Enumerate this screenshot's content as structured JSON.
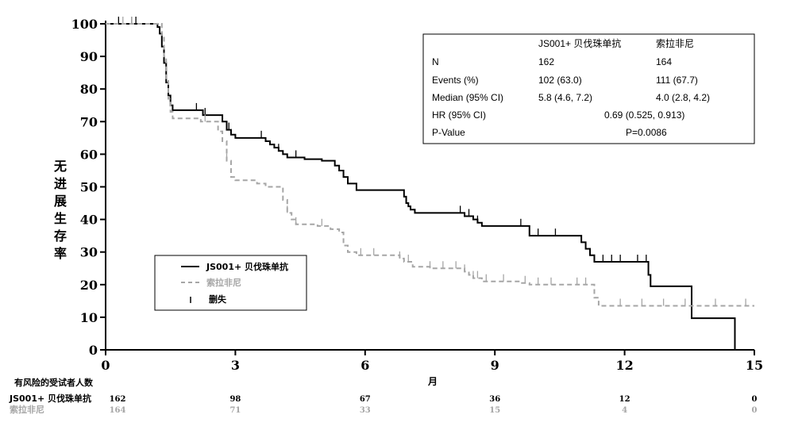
{
  "chart_data": {
    "type": "line",
    "subtype": "kaplan-meier",
    "ylabel": "无进展生存率",
    "xlabel": "月",
    "xlim": [
      0,
      15
    ],
    "ylim": [
      0,
      100
    ],
    "xticks": [
      "0",
      "3",
      "6",
      "9",
      "12",
      "15"
    ],
    "yticks": [
      "0",
      "10",
      "20",
      "30",
      "40",
      "50",
      "60",
      "70",
      "80",
      "90",
      "100"
    ],
    "series": [
      {
        "name": "JS001+ 贝伐珠单抗",
        "color": "#000000",
        "dash": false,
        "steps": [
          [
            0,
            100
          ],
          [
            1.1,
            100
          ],
          [
            1.2,
            99
          ],
          [
            1.25,
            97
          ],
          [
            1.3,
            93
          ],
          [
            1.35,
            88
          ],
          [
            1.4,
            82
          ],
          [
            1.45,
            78
          ],
          [
            1.5,
            75
          ],
          [
            1.55,
            73.5
          ],
          [
            2.2,
            73.5
          ],
          [
            2.25,
            72
          ],
          [
            2.6,
            72
          ],
          [
            2.7,
            70
          ],
          [
            2.8,
            67.5
          ],
          [
            2.9,
            66
          ],
          [
            3.0,
            65
          ],
          [
            3.6,
            65
          ],
          [
            3.7,
            64
          ],
          [
            3.8,
            63
          ],
          [
            3.9,
            62
          ],
          [
            4.0,
            61
          ],
          [
            4.1,
            60
          ],
          [
            4.2,
            59
          ],
          [
            4.6,
            58.5
          ],
          [
            5.0,
            58
          ],
          [
            5.3,
            56.5
          ],
          [
            5.4,
            55
          ],
          [
            5.5,
            53
          ],
          [
            5.6,
            51
          ],
          [
            5.8,
            49
          ],
          [
            6.8,
            49
          ],
          [
            6.9,
            47
          ],
          [
            6.95,
            45
          ],
          [
            7.0,
            44
          ],
          [
            7.05,
            43
          ],
          [
            7.15,
            42
          ],
          [
            8.0,
            42
          ],
          [
            8.3,
            41
          ],
          [
            8.5,
            40
          ],
          [
            8.6,
            39
          ],
          [
            8.7,
            38
          ],
          [
            9.7,
            38
          ],
          [
            9.8,
            35
          ],
          [
            10.9,
            35
          ],
          [
            11.0,
            33
          ],
          [
            11.1,
            31
          ],
          [
            11.2,
            29
          ],
          [
            11.3,
            27
          ],
          [
            12.5,
            27
          ],
          [
            12.55,
            23
          ],
          [
            12.6,
            19.5
          ],
          [
            13.5,
            19.5
          ],
          [
            13.55,
            9.7
          ],
          [
            14.5,
            9.7
          ],
          [
            14.55,
            0
          ]
        ],
        "censor": [
          0.3,
          0.6,
          0.7,
          2.1,
          2.3,
          2.85,
          3.6,
          4.0,
          4.4,
          5.5,
          6.9,
          8.2,
          8.4,
          8.6,
          9.6,
          10.0,
          10.4,
          11.2,
          11.5,
          11.7,
          11.9,
          12.3,
          12.5
        ]
      },
      {
        "name": "索拉非尼",
        "color": "#a6a6a6",
        "dash": true,
        "steps": [
          [
            0,
            100
          ],
          [
            1.2,
            100
          ],
          [
            1.3,
            96
          ],
          [
            1.35,
            90
          ],
          [
            1.4,
            83
          ],
          [
            1.45,
            77
          ],
          [
            1.5,
            73
          ],
          [
            1.55,
            71
          ],
          [
            2.1,
            71
          ],
          [
            2.2,
            70
          ],
          [
            2.6,
            67
          ],
          [
            2.7,
            64
          ],
          [
            2.8,
            58
          ],
          [
            2.9,
            53
          ],
          [
            3.0,
            52
          ],
          [
            3.5,
            51
          ],
          [
            3.7,
            50
          ],
          [
            4.0,
            50
          ],
          [
            4.1,
            46
          ],
          [
            4.2,
            42
          ],
          [
            4.3,
            40
          ],
          [
            4.4,
            38.5
          ],
          [
            4.9,
            38
          ],
          [
            5.2,
            37
          ],
          [
            5.4,
            36
          ],
          [
            5.5,
            32
          ],
          [
            5.6,
            30
          ],
          [
            5.8,
            29
          ],
          [
            6.8,
            28
          ],
          [
            6.9,
            27
          ],
          [
            7.1,
            25.5
          ],
          [
            7.5,
            25
          ],
          [
            8.3,
            24
          ],
          [
            8.4,
            23
          ],
          [
            8.5,
            22
          ],
          [
            8.7,
            21
          ],
          [
            9.4,
            21
          ],
          [
            9.6,
            20.5
          ],
          [
            9.8,
            20
          ],
          [
            11.2,
            20
          ],
          [
            11.3,
            16
          ],
          [
            11.4,
            13.5
          ],
          [
            15,
            13.5
          ]
        ],
        "censor": [
          0.4,
          0.6,
          2.3,
          2.8,
          4.2,
          4.4,
          5.0,
          5.9,
          6.2,
          6.8,
          7.0,
          7.5,
          7.8,
          8.1,
          8.3,
          8.5,
          8.6,
          8.8,
          9.2,
          9.7,
          10.0,
          10.3,
          10.9,
          11.1,
          11.9,
          12.4,
          12.9,
          13.4,
          14.1,
          14.8
        ]
      }
    ],
    "stats_table": {
      "headers": [
        "",
        "JS001+ 贝伐珠单抗",
        "索拉非尼"
      ],
      "rows": [
        [
          "N",
          "162",
          "164"
        ],
        [
          "Events (%)",
          "102 (63.0)",
          "111 (67.7)"
        ],
        [
          "Median (95% CI)",
          "5.8 (4.6, 7.2)",
          "4.0 (2.8, 4.2)"
        ]
      ],
      "hr_label": "HR (95% CI)",
      "hr_value": "0.69 (0.525, 0.913)",
      "p_label": "P-Value",
      "p_value": "P=0.0086"
    },
    "legend": {
      "position": "lower-left",
      "items": [
        "JS001+ 贝伐珠单抗",
        "索拉非尼",
        "删失"
      ]
    },
    "risk_table": {
      "title": "有风险的受试者人数",
      "rows": [
        {
          "name": "JS001+ 贝伐珠单抗",
          "values": [
            "162",
            "98",
            "67",
            "36",
            "12",
            "0"
          ],
          "color": "#000000"
        },
        {
          "name": "索拉非尼",
          "values": [
            "164",
            "71",
            "33",
            "15",
            "4",
            "0"
          ],
          "color": "#a6a6a6"
        }
      ]
    }
  }
}
